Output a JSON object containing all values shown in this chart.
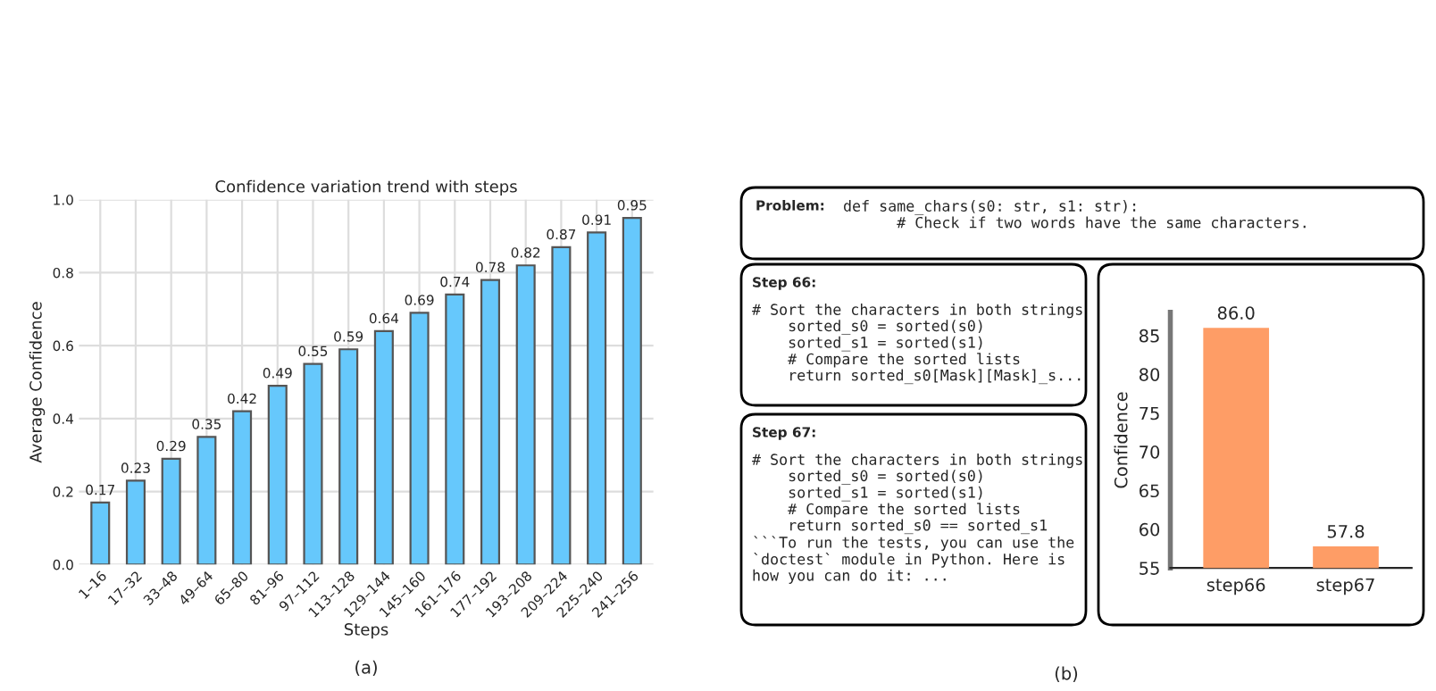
{
  "chart_data": [
    {
      "type": "bar",
      "title": "Confidence variation trend with steps",
      "xlabel": "Steps",
      "ylabel": "Average Confidence",
      "categories": [
        "1–16",
        "17–32",
        "33–48",
        "49–64",
        "65–80",
        "81–96",
        "97–112",
        "113–128",
        "129–144",
        "145–160",
        "161–176",
        "177–192",
        "193–208",
        "209–224",
        "225–240",
        "241–256"
      ],
      "values": [
        0.17,
        0.23,
        0.29,
        0.35,
        0.42,
        0.49,
        0.55,
        0.59,
        0.64,
        0.69,
        0.74,
        0.78,
        0.82,
        0.87,
        0.91,
        0.95
      ],
      "color": "#66c8fc",
      "ylim": [
        0,
        1.0
      ],
      "yticks": [
        {
          "value": 0,
          "label": "0.0"
        },
        0.2,
        0.4,
        0.6,
        0.8,
        {
          "value": 1,
          "label": "1.0"
        }
      ],
      "grid": true,
      "data_labels": true,
      "annotations": [
        "(a)"
      ]
    },
    {
      "type": "other",
      "annotations": [
        "Problem:",
        "def same_chars(s0: str, s1: str):\n      # Check if two words have the same characters.",
        "Step 66:",
        "# Sort the characters in both strings\n    sorted_s0 = sorted(s0)\n    sorted_s1 = sorted(s1)\n    # Compare the sorted lists\n    return sorted_s0[Mask][Mask]_s...",
        "Step 67:",
        "# Sort the characters in both strings\n    sorted_s0 = sorted(s0)\n    sorted_s1 = sorted(s1)\n    # Compare the sorted lists\n    return sorted_s0 == sorted_s1\n```To run the tests, you can use the\n`doctest` module in Python. Here is\nhow you can do it: ...",
        "(b)"
      ]
    },
    {
      "type": "bar",
      "ylabel": "Confidence",
      "categories": [
        "step66",
        "step67"
      ],
      "values": [
        86.0,
        57.8
      ],
      "color": "#fe9d66",
      "ylim": [
        55,
        88
      ],
      "yticks": [
        55,
        60,
        65,
        70,
        75,
        80,
        85
      ],
      "value_labels": [
        "86.0",
        "57.8"
      ]
    }
  ]
}
